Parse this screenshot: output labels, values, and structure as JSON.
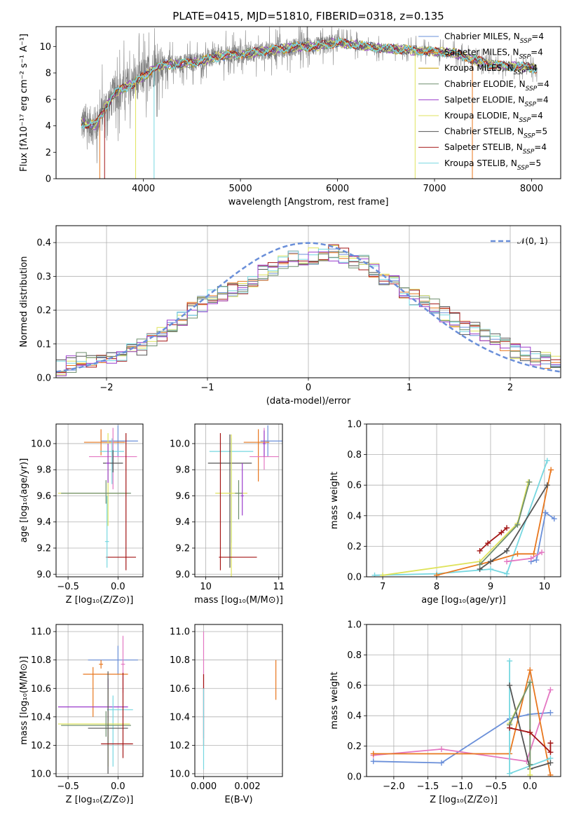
{
  "title": "PLATE=0415, MJD=51810, FIBERID=0318, z=0.135",
  "colors": {
    "chabrier_miles": "#6a8fd9",
    "salpeter_miles": "#e8771e",
    "kroupa_miles": "#c8a200",
    "chabrier_elodie": "#6f8f6f",
    "salpeter_elodie": "#9a3ccc",
    "kroupa_elodie": "#dfe35c",
    "chabrier_stelib": "#555555",
    "salpeter_stelib": "#a31515",
    "kroupa_stelib": "#76d7e0",
    "pink": "#e377c2",
    "data": "#808080",
    "normal": "#6a8fd9"
  },
  "chart_data": [
    {
      "id": "spectrum",
      "type": "line",
      "title": "PLATE=0415, MJD=51810, FIBERID=0318, z=0.135",
      "xlabel": "wavelength [Angstrom, rest frame]",
      "ylabel": "Flux [fλ10⁻¹⁷ erg cm⁻² s⁻¹ A⁻¹]",
      "xlim": [
        3100,
        8300
      ],
      "ylim": [
        0,
        11.5
      ],
      "xticks": [
        "4000",
        "5000",
        "6000",
        "7000",
        "8000"
      ],
      "yticks": [
        "0",
        "2",
        "4",
        "6",
        "8",
        "10"
      ],
      "grid": false,
      "legend_position": "upper right",
      "continuum": [
        [
          3360,
          4.2
        ],
        [
          3500,
          4.0
        ],
        [
          3600,
          5.3
        ],
        [
          3700,
          6.4
        ],
        [
          3800,
          6.9
        ],
        [
          3900,
          7.2
        ],
        [
          4000,
          7.7
        ],
        [
          4100,
          8.3
        ],
        [
          4200,
          8.6
        ],
        [
          4400,
          8.7
        ],
        [
          4600,
          8.9
        ],
        [
          4800,
          9.3
        ],
        [
          5000,
          9.4
        ],
        [
          5200,
          9.6
        ],
        [
          5400,
          9.8
        ],
        [
          5600,
          10.0
        ],
        [
          5800,
          10.0
        ],
        [
          6000,
          10.3
        ],
        [
          6200,
          10.1
        ],
        [
          6400,
          9.9
        ],
        [
          6600,
          9.8
        ],
        [
          6800,
          9.7
        ],
        [
          7000,
          9.6
        ],
        [
          7200,
          9.5
        ],
        [
          7400,
          9.0
        ],
        [
          7600,
          8.6
        ],
        [
          7800,
          8.5
        ],
        [
          8000,
          8.4
        ],
        [
          8060,
          8.3
        ]
      ],
      "legend": [
        {
          "label": "Chabrier MILES, N",
          "sub": "SSP",
          "n": "=4"
        },
        {
          "label": "Salpeter MILES, N",
          "sub": "SSP",
          "n": "=4"
        },
        {
          "label": "Kroupa MILES, N",
          "sub": "SSP",
          "n": "=4"
        },
        {
          "label": "Chabrier ELODIE, N",
          "sub": "SSP",
          "n": "=4"
        },
        {
          "label": "Salpeter ELODIE, N",
          "sub": "SSP",
          "n": "=4"
        },
        {
          "label": "Kroupa ELODIE, N",
          "sub": "SSP",
          "n": "=4"
        },
        {
          "label": "Chabrier STELIB, N",
          "sub": "SSP",
          "n": "=5"
        },
        {
          "label": "Salpeter STELIB, N",
          "sub": "SSP",
          "n": "=4"
        },
        {
          "label": "Kroupa STELIB, N",
          "sub": "SSP",
          "n": "=5"
        }
      ]
    },
    {
      "id": "residuals",
      "type": "line",
      "xlabel": "(data-model)/error",
      "ylabel": "Normed distribution",
      "xlim": [
        -2.5,
        2.5
      ],
      "ylim": [
        0,
        0.45
      ],
      "xticks": [
        "−2",
        "−1",
        "0",
        "1",
        "2"
      ],
      "yticks": [
        "0.0",
        "0.1",
        "0.2",
        "0.3",
        "0.4"
      ],
      "grid": true,
      "legend_position": "upper right",
      "legend": [
        "𝒩(0, 1)"
      ],
      "bin_start": -2.5,
      "bin_width": 0.1,
      "hist_base": [
        0.03,
        0.04,
        0.05,
        0.05,
        0.06,
        0.06,
        0.07,
        0.08,
        0.09,
        0.11,
        0.13,
        0.15,
        0.17,
        0.2,
        0.22,
        0.24,
        0.25,
        0.26,
        0.27,
        0.29,
        0.31,
        0.32,
        0.34,
        0.35,
        0.35,
        0.36,
        0.37,
        0.37,
        0.36,
        0.35,
        0.34,
        0.32,
        0.3,
        0.28,
        0.26,
        0.24,
        0.23,
        0.21,
        0.19,
        0.17,
        0.15,
        0.14,
        0.12,
        0.11,
        0.1,
        0.08,
        0.07,
        0.06,
        0.05,
        0.04
      ]
    },
    {
      "id": "age_vs_z",
      "type": "scatter",
      "xlabel": "Z [log₁₀(Z/Z⊙)]",
      "ylabel": "age  [log₁₀(age/yr)]",
      "xlim": [
        -0.62,
        0.25
      ],
      "ylim": [
        8.98,
        10.15
      ],
      "xticks": [
        "−0.5",
        "0.0"
      ],
      "yticks": [
        "9.0",
        "9.2",
        "9.4",
        "9.6",
        "9.8",
        "10.0"
      ],
      "grid": true,
      "points": [
        {
          "x": 0.0,
          "y": 10.02,
          "xerr": [
            0.17,
            0.2
          ],
          "yerr": [
            0.12,
            0.12
          ],
          "color": "#6a8fd9"
        },
        {
          "x": -0.17,
          "y": 10.01,
          "xerr": [
            0.17,
            0.24
          ],
          "yerr": [
            0.1,
            0.1
          ],
          "color": "#e8771e"
        },
        {
          "x": -0.05,
          "y": 9.9,
          "xerr": [
            0.24,
            0.24
          ],
          "yerr": [
            0.25,
            0.22
          ],
          "color": "#e377c2"
        },
        {
          "x": -0.06,
          "y": 9.94,
          "xerr": [
            0.12,
            0.12
          ],
          "yerr": [
            0.25,
            0.1
          ],
          "color": "#76d7e0"
        },
        {
          "x": -0.05,
          "y": 9.85,
          "xerr": [
            0.1,
            0.1
          ],
          "yerr": [
            0.07,
            0.1
          ],
          "color": "#555555"
        },
        {
          "x": -0.1,
          "y": 9.62,
          "xerr": [
            0.5,
            0.2
          ],
          "yerr": [
            0.25,
            0.46
          ],
          "color": "#dfe35c"
        },
        {
          "x": -0.12,
          "y": 9.62,
          "xerr": [
            0.45,
            0.25
          ],
          "yerr": [
            0.08,
            0.1
          ],
          "color": "#6f8f6f"
        },
        {
          "x": -0.1,
          "y": 9.85,
          "xerr": [
            0.02,
            0.02
          ],
          "yerr": [
            0.15,
            0.15
          ],
          "color": "#9a3ccc"
        },
        {
          "x": 0.08,
          "y": 9.13,
          "xerr": [
            0.2,
            0.1
          ],
          "yerr": [
            0.1,
            0.95
          ],
          "color": "#a31515"
        },
        {
          "x": -0.11,
          "y": 9.25,
          "xerr": [
            0.02,
            0.02
          ],
          "yerr": [
            0.2,
            0.35
          ],
          "color": "#76d7e0"
        }
      ]
    },
    {
      "id": "age_vs_mass",
      "type": "scatter",
      "xlabel": "mass [log₁₀(M/M⊙)]",
      "ylabel": "",
      "xlim": [
        9.85,
        11.05
      ],
      "ylim": [
        8.98,
        10.15
      ],
      "xticks": [
        "10",
        "11"
      ],
      "yticks": [
        "9.0",
        "9.2",
        "9.4",
        "9.6",
        "9.8",
        "10.0"
      ],
      "grid": true,
      "points": [
        {
          "x": 10.85,
          "y": 10.02,
          "xerr": [
            0.1,
            0.2
          ],
          "yerr": [
            0.12,
            0.12
          ],
          "color": "#6a8fd9"
        },
        {
          "x": 10.72,
          "y": 10.01,
          "xerr": [
            0.2,
            0.15
          ],
          "yerr": [
            0.3,
            0.1
          ],
          "color": "#e8771e"
        },
        {
          "x": 10.8,
          "y": 9.9,
          "xerr": [
            0.2,
            0.2
          ],
          "yerr": [
            0.1,
            0.22
          ],
          "color": "#e377c2"
        },
        {
          "x": 10.35,
          "y": 9.94,
          "xerr": [
            0.3,
            0.3
          ],
          "yerr": [
            0.7,
            0.1
          ],
          "color": "#76d7e0"
        },
        {
          "x": 10.33,
          "y": 9.85,
          "xerr": [
            0.3,
            0.3
          ],
          "yerr": [
            0.8,
            0.22
          ],
          "color": "#555555"
        },
        {
          "x": 10.35,
          "y": 9.62,
          "xerr": [
            0.22,
            0.22
          ],
          "yerr": [
            0.65,
            0.45
          ],
          "color": "#dfe35c"
        },
        {
          "x": 10.45,
          "y": 9.62,
          "xerr": [
            0.05,
            0.05
          ],
          "yerr": [
            0.2,
            0.1
          ],
          "color": "#6f8f6f"
        },
        {
          "x": 10.5,
          "y": 9.6,
          "xerr": [
            0.02,
            0.02
          ],
          "yerr": [
            0.15,
            0.25
          ],
          "color": "#9a3ccc"
        },
        {
          "x": 10.2,
          "y": 9.13,
          "xerr": [
            0.02,
            0.5
          ],
          "yerr": [
            0.1,
            0.95
          ],
          "color": "#a31515"
        },
        {
          "x": 10.8,
          "y": 10.0,
          "xerr": [
            0.02,
            0.02
          ],
          "yerr": [
            0.1,
            0.1
          ],
          "color": "#9a3ccc"
        }
      ]
    },
    {
      "id": "weight_vs_age",
      "type": "line",
      "xlabel": "age  [log₁₀(age/yr)]",
      "ylabel": "mass weight",
      "xlim": [
        6.7,
        10.3
      ],
      "ylim": [
        0,
        1.0
      ],
      "xticks": [
        "7",
        "8",
        "9",
        "10"
      ],
      "yticks": [
        "0.0",
        "0.2",
        "0.4",
        "0.6",
        "0.8",
        "1.0"
      ],
      "grid": true,
      "series": [
        {
          "color": "#76d7e0",
          "x": [
            6.85,
            8.0,
            9.0,
            9.3,
            10.05
          ],
          "y": [
            0.01,
            0.02,
            0.05,
            0.02,
            0.76
          ]
        },
        {
          "color": "#e8771e",
          "x": [
            8.0,
            9.0,
            9.5,
            9.8,
            10.12
          ],
          "y": [
            0.01,
            0.1,
            0.15,
            0.15,
            0.7
          ]
        },
        {
          "color": "#555555",
          "x": [
            8.8,
            9.0,
            9.3,
            10.05
          ],
          "y": [
            0.05,
            0.1,
            0.17,
            0.6
          ]
        },
        {
          "color": "#dfe35c",
          "x": [
            7.0,
            8.8,
            9.5,
            9.7
          ],
          "y": [
            0.01,
            0.1,
            0.35,
            0.62
          ]
        },
        {
          "color": "#6f8f6f",
          "x": [
            8.8,
            9.5,
            9.72
          ],
          "y": [
            0.08,
            0.34,
            0.62
          ]
        },
        {
          "color": "#6a8fd9",
          "x": [
            9.75,
            9.85,
            10.02,
            10.18
          ],
          "y": [
            0.1,
            0.11,
            0.42,
            0.38
          ]
        },
        {
          "color": "#a31515",
          "x": [
            8.8,
            8.95,
            9.2,
            9.3
          ],
          "y": [
            0.17,
            0.22,
            0.29,
            0.32
          ]
        },
        {
          "color": "#e377c2",
          "x": [
            9.3,
            9.75,
            9.95
          ],
          "y": [
            0.1,
            0.12,
            0.16
          ]
        }
      ]
    },
    {
      "id": "mass_vs_z",
      "type": "scatter",
      "xlabel": "Z [log₁₀(Z/Z⊙)]",
      "ylabel": "mass [log₁₀(M/M⊙)]",
      "xlim": [
        -0.62,
        0.25
      ],
      "ylim": [
        9.98,
        11.05
      ],
      "xticks": [
        "−0.5",
        "0.0"
      ],
      "yticks": [
        "10.0",
        "10.2",
        "10.4",
        "10.6",
        "10.8",
        "11.0"
      ],
      "grid": true,
      "points": [
        {
          "x": 0.0,
          "y": 10.8,
          "xerr": [
            0.3,
            0.2
          ],
          "yerr": [
            0.1,
            0.1
          ],
          "color": "#6a8fd9"
        },
        {
          "x": -0.25,
          "y": 10.7,
          "xerr": [
            0.1,
            0.35
          ],
          "yerr": [
            0.3,
            0.05
          ],
          "color": "#e8771e"
        },
        {
          "x": -0.17,
          "y": 10.77,
          "xerr": [
            0.02,
            0.02
          ],
          "yerr": [
            0.03,
            0.03
          ],
          "color": "#e8771e"
        },
        {
          "x": 0.05,
          "y": 10.77,
          "xerr": [
            0.02,
            0.02
          ],
          "yerr": [
            0.2,
            0.2
          ],
          "color": "#e377c2"
        },
        {
          "x": -0.1,
          "y": 10.47,
          "xerr": [
            0.5,
            0.2
          ],
          "yerr": [
            0.1,
            0.2
          ],
          "color": "#9a3ccc"
        },
        {
          "x": -0.05,
          "y": 10.45,
          "xerr": [
            0.06,
            0.2
          ],
          "yerr": [
            0.4,
            0.1
          ],
          "color": "#76d7e0"
        },
        {
          "x": -0.1,
          "y": 10.35,
          "xerr": [
            0.5,
            0.22
          ],
          "yerr": [
            0.3,
            0.25
          ],
          "color": "#dfe35c"
        },
        {
          "x": -0.12,
          "y": 10.34,
          "xerr": [
            0.45,
            0.25
          ],
          "yerr": [
            0.08,
            0.1
          ],
          "color": "#6f8f6f"
        },
        {
          "x": -0.1,
          "y": 10.32,
          "xerr": [
            0.2,
            0.2
          ],
          "yerr": [
            0.32,
            0.4
          ],
          "color": "#555555"
        },
        {
          "x": 0.05,
          "y": 10.21,
          "xerr": [
            0.22,
            0.1
          ],
          "yerr": [
            0.1,
            0.5
          ],
          "color": "#a31515"
        }
      ]
    },
    {
      "id": "mass_vs_ebv",
      "type": "scatter",
      "xlabel": "E(B-V)",
      "ylabel": "",
      "xlim": [
        -0.0004,
        0.0036
      ],
      "ylim": [
        9.98,
        11.05
      ],
      "xticks": [
        "0.000",
        "0.002"
      ],
      "yticks": [
        "10.0",
        "10.2",
        "10.4",
        "10.6",
        "10.8",
        "11.0"
      ],
      "grid": true,
      "points": [
        {
          "x": 0.0,
          "y": 10.65,
          "xerr": [
            0,
            0
          ],
          "yerr": [
            0.4,
            0.35
          ],
          "color": "#e377c2"
        },
        {
          "x": 0.0,
          "y": 10.6,
          "xerr": [
            0,
            0
          ],
          "yerr": [
            0.4,
            0.1
          ],
          "color": "#a31515"
        },
        {
          "x": 0.0,
          "y": 10.4,
          "xerr": [
            0,
            0
          ],
          "yerr": [
            0.37,
            0.2
          ],
          "color": "#76d7e0"
        },
        {
          "x": 0.0033,
          "y": 10.65,
          "xerr": [
            0,
            0
          ],
          "yerr": [
            0.13,
            0.15
          ],
          "color": "#e8771e"
        }
      ]
    },
    {
      "id": "weight_vs_z",
      "type": "line",
      "xlabel": "Z [log₁₀(Z/Z⊙)]",
      "ylabel": "mass weight",
      "xlim": [
        -2.4,
        0.45
      ],
      "ylim": [
        0,
        1.0
      ],
      "xticks": [
        "−2.0",
        "−1.5",
        "−1.0",
        "−0.5",
        "0.0"
      ],
      "yticks": [
        "0.0",
        "0.2",
        "0.4",
        "0.6",
        "0.8",
        "1.0"
      ],
      "grid": true,
      "series": [
        {
          "color": "#6a8fd9",
          "x": [
            -2.3,
            -1.3,
            -0.3,
            0.0,
            0.3
          ],
          "y": [
            0.1,
            0.09,
            0.38,
            0.41,
            0.42
          ]
        },
        {
          "color": "#e377c2",
          "x": [
            -2.3,
            -1.3,
            -0.05,
            0.3
          ],
          "y": [
            0.14,
            0.18,
            0.1,
            0.57
          ]
        },
        {
          "color": "#e8771e",
          "x": [
            -2.3,
            -0.3,
            0.0,
            0.3
          ],
          "y": [
            0.15,
            0.15,
            0.7,
            0.01
          ]
        },
        {
          "color": "#76d7e0",
          "x": [
            -0.3,
            -0.3,
            0.3
          ],
          "y": [
            0.76,
            0.02,
            0.12
          ]
        },
        {
          "color": "#555555",
          "x": [
            -0.3,
            0.0,
            0.3
          ],
          "y": [
            0.6,
            0.05,
            0.09
          ]
        },
        {
          "color": "#dfe35c",
          "x": [
            -0.3,
            0.0,
            0.0
          ],
          "y": [
            0.35,
            0.62,
            0.01
          ]
        },
        {
          "color": "#6f8f6f",
          "x": [
            -0.3,
            0.0,
            0.0
          ],
          "y": [
            0.34,
            0.62,
            0.08
          ]
        },
        {
          "color": "#a31515",
          "x": [
            -0.3,
            0.0,
            0.3,
            0.3
          ],
          "y": [
            0.32,
            0.29,
            0.16,
            0.22
          ]
        }
      ]
    }
  ]
}
